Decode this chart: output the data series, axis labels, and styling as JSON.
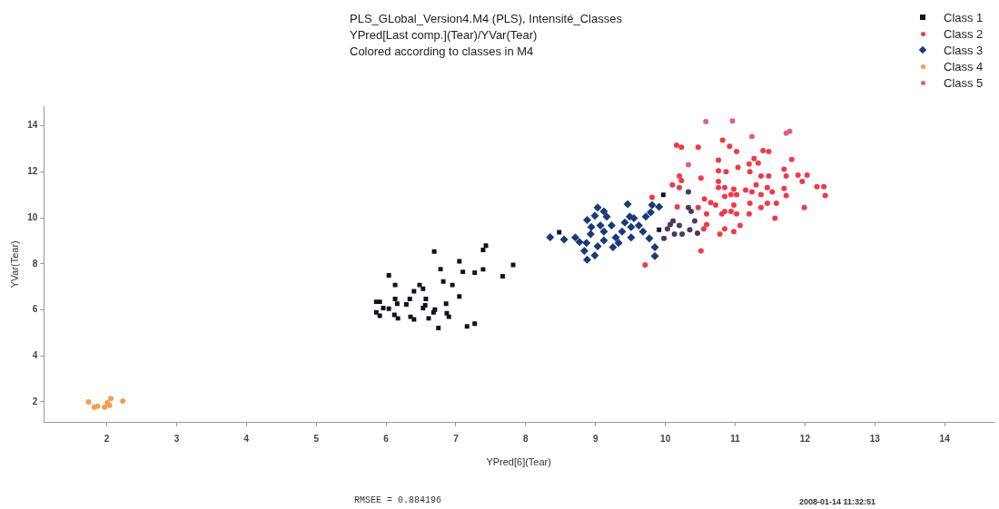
{
  "chart_data": {
    "type": "scatter",
    "title": "PLS_GLobal_Version4.M4 (PLS), Intensité_Classes",
    "subtitle": "YPred[Last comp.](Tear)/YVar(Tear)\nColored according to classes in M4",
    "xlabel": "YPred[6](Tear)",
    "ylabel": "YVar(Tear)",
    "annotations": [
      "RMSEE = 0.884196",
      "2008-01-14 11:32:51"
    ],
    "xlim": [
      1.1,
      14.7
    ],
    "ylim": [
      1.1,
      14.85
    ],
    "xticks": [
      2,
      3,
      4,
      5,
      6,
      7,
      8,
      9,
      10,
      11,
      12,
      13,
      14
    ],
    "yticks": [
      2,
      4,
      6,
      8,
      10,
      12,
      14
    ],
    "grid": false,
    "legend": "top right",
    "series": [
      {
        "name": "Class 1",
        "color": "#111122",
        "marker": "square",
        "x": [
          6.69,
          7.43,
          7.39,
          7.05,
          6.78,
          7.1,
          7.27,
          7.39,
          7.82,
          7.67,
          6.04,
          6.13,
          6.48,
          6.53,
          6.4,
          6.82,
          6.95,
          7.05,
          5.86,
          5.91,
          6.13,
          6.16,
          6.34,
          6.29,
          6.57,
          6.56,
          6.86,
          5.96,
          6.04,
          5.86,
          5.91,
          6.12,
          6.17,
          6.35,
          6.4,
          6.53,
          6.7,
          6.68,
          6.87,
          6.9,
          6.61,
          6.75,
          7.16,
          7.27,
          8.48,
          9.91,
          9.97
        ],
        "values": [
          8.53,
          8.79,
          8.6,
          8.11,
          7.77,
          7.65,
          7.62,
          7.76,
          7.95,
          7.46,
          7.5,
          7.08,
          7.08,
          6.92,
          6.81,
          7.23,
          7.08,
          6.58,
          6.35,
          6.35,
          6.47,
          6.27,
          6.47,
          6.24,
          6.47,
          6.2,
          6.27,
          6.08,
          6.05,
          5.89,
          5.74,
          5.78,
          5.63,
          5.7,
          5.59,
          6.08,
          6.01,
          5.89,
          5.85,
          5.7,
          5.63,
          5.21,
          5.28,
          5.4,
          9.37,
          9.48,
          11.0
        ]
      },
      {
        "name": "Class 2",
        "color": "#f03a48",
        "marker": "circle",
        "x": [
          10.16,
          10.23,
          10.47,
          10.82,
          10.92,
          11.02,
          11.4,
          11.48,
          11.81,
          11.27,
          11.33,
          10.76,
          11.04,
          11.2,
          11.21,
          10.76,
          10.87,
          10.51,
          10.2,
          10.23,
          10.1,
          10.2,
          10.76,
          10.76,
          10.85,
          10.98,
          11.15,
          11.3,
          11.37,
          11.48,
          11.46,
          11.7,
          11.73,
          11.7,
          11.73,
          11.9,
          12.03,
          11.96,
          12.17,
          12.27,
          12.29,
          11.99,
          11.57,
          11.53,
          11.37,
          11.24,
          10.85,
          10.94,
          11.02,
          10.56,
          9.81,
          10.17,
          10.47,
          10.65,
          10.72,
          10.85,
          10.81,
          10.94,
          11.02,
          11.2,
          11.46,
          11.59,
          11.37,
          11.21,
          10.98,
          10.59,
          10.59,
          10.55,
          10.85,
          10.98,
          11.07,
          10.78,
          10.51,
          9.71
        ],
        "values": [
          13.15,
          13.07,
          13.07,
          13.37,
          13.11,
          12.88,
          12.92,
          12.88,
          12.53,
          12.57,
          12.38,
          12.5,
          12.19,
          12.34,
          12.0,
          12.04,
          12.0,
          11.73,
          11.81,
          11.62,
          11.43,
          11.31,
          11.58,
          11.31,
          11.31,
          11.24,
          11.2,
          11.43,
          11.81,
          11.81,
          11.31,
          12.11,
          11.81,
          11.27,
          10.97,
          11.85,
          11.85,
          11.58,
          11.35,
          11.35,
          10.97,
          10.44,
          9.98,
          11.12,
          11.01,
          11.12,
          10.93,
          11.01,
          11.01,
          10.82,
          10.89,
          10.47,
          10.44,
          10.66,
          10.55,
          10.28,
          10.17,
          10.28,
          10.17,
          10.17,
          10.63,
          10.63,
          10.44,
          10.63,
          10.55,
          10.17,
          9.71,
          9.52,
          9.52,
          9.4,
          9.67,
          9.29,
          8.56,
          7.95
        ]
      },
      {
        "name": "Class 3",
        "color": "#1a3a78",
        "marker": "diamond",
        "x": [
          8.55,
          9.46,
          8.88,
          9.03,
          9.12,
          8.99,
          9.16,
          8.94,
          9.07,
          9.23,
          8.71,
          8.77,
          8.87,
          8.84,
          8.88,
          8.99,
          9.03,
          9.12,
          9.29,
          9.38,
          9.42,
          9.55,
          9.62,
          9.72,
          9.79,
          9.91,
          9.81,
          9.77,
          9.85,
          9.85,
          9.68,
          9.51,
          9.25,
          9.33,
          9.51,
          9.49,
          9.12,
          8.93,
          8.35
        ],
        "values": [
          9.06,
          10.59,
          9.9,
          10.44,
          10.28,
          10.09,
          10.05,
          9.6,
          9.67,
          9.67,
          9.14,
          8.95,
          8.91,
          8.56,
          8.18,
          8.37,
          8.76,
          9.02,
          9.14,
          9.4,
          9.79,
          9.98,
          9.67,
          10.05,
          10.24,
          10.47,
          10.55,
          9.1,
          8.72,
          8.34,
          9.4,
          9.14,
          8.72,
          8.91,
          9.6,
          10.05,
          9.4,
          9.29,
          9.15
        ]
      },
      {
        "name": "Class 4",
        "color": "#f0a050",
        "marker": "circle",
        "x": [
          1.74,
          1.82,
          1.87,
          1.97,
          2.01,
          2.06,
          2.04,
          2.23
        ],
        "values": [
          2.0,
          1.77,
          1.81,
          1.77,
          1.96,
          2.15,
          1.85,
          2.04
        ]
      },
      {
        "name": "Class 5",
        "color": "#e0608a",
        "marker": "circle",
        "x": [
          10.58,
          10.96,
          11.24,
          11.78,
          11.73,
          10.33
        ],
        "values": [
          14.18,
          14.21,
          13.53,
          13.76,
          13.68,
          12.31
        ]
      },
      {
        "color": "#4b3a5e",
        "marker": "circle",
        "x": [
          10.33,
          10.33,
          10.37,
          10.11,
          10.2,
          10.42,
          10.03,
          9.98,
          10.13,
          10.24,
          10.35,
          10.46,
          10.07
        ],
        "values": [
          11.12,
          10.44,
          10.28,
          9.86,
          9.67,
          9.86,
          9.52,
          9.1,
          9.29,
          9.29,
          9.48,
          9.33,
          9.71
        ]
      }
    ]
  }
}
